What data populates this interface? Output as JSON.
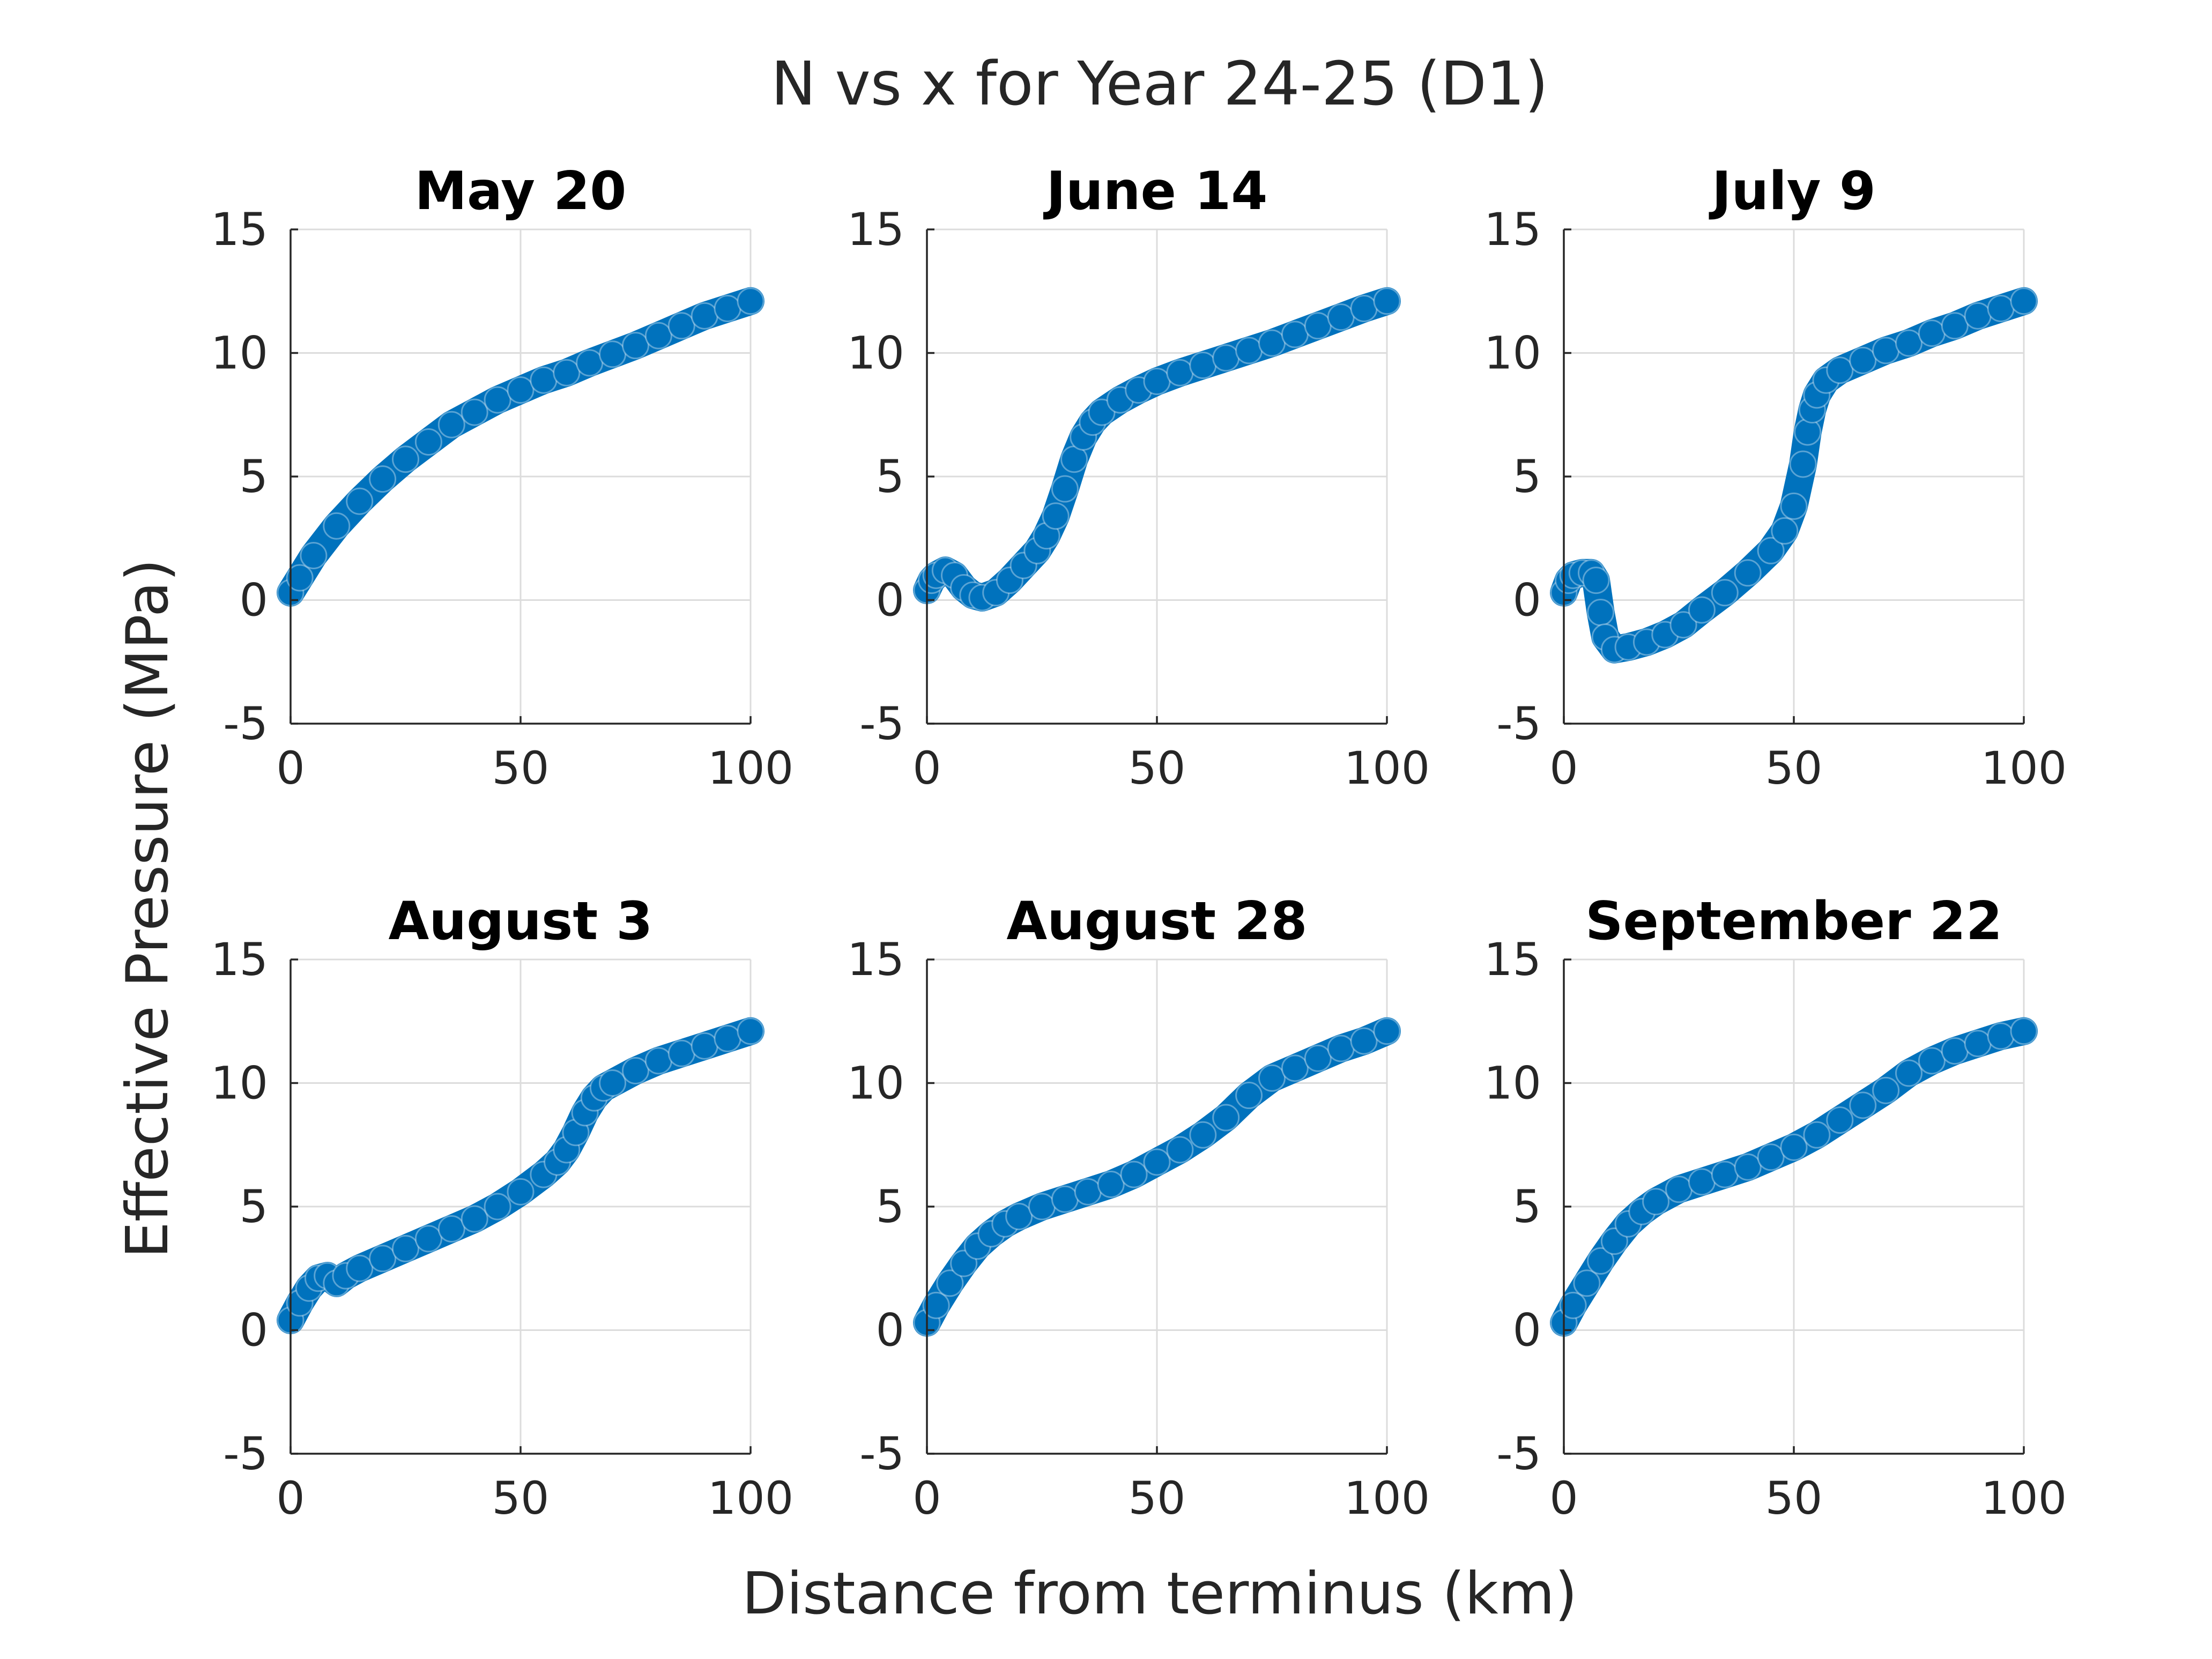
{
  "figure": {
    "title": "N vs x for Year 24-25 (D1)",
    "xlabel": "Distance from terminus (km)",
    "ylabel": "Effective Pressure (MPa)",
    "series_color": "#0072BD"
  },
  "chart_data": [
    {
      "type": "scatter",
      "title": "May 20",
      "xlim": [
        0,
        100
      ],
      "ylim": [
        -5,
        15
      ],
      "xticks": [
        0,
        50,
        100
      ],
      "yticks": [
        -5,
        0,
        5,
        10,
        15
      ],
      "grid": true,
      "x": [
        0,
        2,
        5,
        10,
        15,
        20,
        25,
        30,
        35,
        40,
        45,
        50,
        55,
        60,
        65,
        70,
        75,
        80,
        85,
        90,
        95,
        100
      ],
      "y": [
        0.3,
        0.9,
        1.8,
        3.0,
        4.0,
        4.9,
        5.7,
        6.4,
        7.1,
        7.6,
        8.1,
        8.5,
        8.9,
        9.2,
        9.6,
        9.95,
        10.3,
        10.7,
        11.1,
        11.5,
        11.8,
        12.1
      ]
    },
    {
      "type": "scatter",
      "title": "June 14",
      "xlim": [
        0,
        100
      ],
      "ylim": [
        -5,
        15
      ],
      "xticks": [
        0,
        50,
        100
      ],
      "yticks": [
        -5,
        0,
        5,
        10,
        15
      ],
      "grid": true,
      "x": [
        0,
        1,
        2,
        4,
        6,
        8,
        10,
        12,
        15,
        18,
        21,
        24,
        26,
        28,
        30,
        32,
        34,
        36,
        38,
        42,
        46,
        50,
        55,
        60,
        65,
        70,
        75,
        80,
        85,
        90,
        95,
        100
      ],
      "y": [
        0.4,
        0.8,
        1.0,
        1.2,
        1.0,
        0.5,
        0.2,
        0.1,
        0.3,
        0.8,
        1.4,
        2.0,
        2.6,
        3.4,
        4.5,
        5.7,
        6.6,
        7.2,
        7.6,
        8.1,
        8.5,
        8.85,
        9.2,
        9.5,
        9.8,
        10.1,
        10.4,
        10.75,
        11.1,
        11.45,
        11.8,
        12.1
      ]
    },
    {
      "type": "scatter",
      "title": "July 9",
      "xlim": [
        0,
        100
      ],
      "ylim": [
        -5,
        15
      ],
      "xticks": [
        0,
        50,
        100
      ],
      "yticks": [
        -5,
        0,
        5,
        10,
        15
      ],
      "grid": true,
      "x": [
        0,
        1,
        2,
        4,
        6,
        7,
        8,
        9,
        11,
        14,
        18,
        22,
        26,
        30,
        35,
        40,
        45,
        48,
        50,
        52,
        53,
        54,
        55,
        57,
        60,
        65,
        70,
        75,
        80,
        85,
        90,
        95,
        100
      ],
      "y": [
        0.3,
        0.8,
        1.0,
        1.1,
        1.1,
        0.8,
        -0.5,
        -1.5,
        -2.0,
        -1.9,
        -1.7,
        -1.4,
        -1.0,
        -0.4,
        0.3,
        1.1,
        2.0,
        2.8,
        3.8,
        5.5,
        6.8,
        7.7,
        8.3,
        8.9,
        9.3,
        9.7,
        10.1,
        10.4,
        10.8,
        11.1,
        11.5,
        11.8,
        12.1
      ]
    },
    {
      "type": "scatter",
      "title": "August 3",
      "xlim": [
        0,
        100
      ],
      "ylim": [
        -5,
        15
      ],
      "xticks": [
        0,
        50,
        100
      ],
      "yticks": [
        -5,
        0,
        5,
        10,
        15
      ],
      "grid": true,
      "x": [
        0,
        2,
        4,
        6,
        8,
        10,
        12,
        15,
        20,
        25,
        30,
        35,
        40,
        45,
        50,
        55,
        58,
        60,
        62,
        64,
        66,
        68,
        70,
        75,
        80,
        85,
        90,
        95,
        100
      ],
      "y": [
        0.4,
        1.1,
        1.7,
        2.1,
        2.2,
        1.9,
        2.2,
        2.5,
        2.9,
        3.3,
        3.7,
        4.1,
        4.5,
        5.0,
        5.6,
        6.3,
        6.8,
        7.3,
        8.0,
        8.8,
        9.4,
        9.8,
        10.0,
        10.5,
        10.9,
        11.2,
        11.5,
        11.8,
        12.1
      ]
    },
    {
      "type": "scatter",
      "title": "August 28",
      "xlim": [
        0,
        100
      ],
      "ylim": [
        -5,
        15
      ],
      "xticks": [
        0,
        50,
        100
      ],
      "yticks": [
        -5,
        0,
        5,
        10,
        15
      ],
      "grid": true,
      "x": [
        0,
        2,
        5,
        8,
        11,
        14,
        17,
        20,
        25,
        30,
        35,
        40,
        45,
        50,
        55,
        60,
        65,
        70,
        75,
        80,
        85,
        90,
        95,
        100
      ],
      "y": [
        0.3,
        1.0,
        1.9,
        2.7,
        3.4,
        3.9,
        4.3,
        4.6,
        5.0,
        5.3,
        5.6,
        5.9,
        6.3,
        6.8,
        7.3,
        7.9,
        8.6,
        9.5,
        10.2,
        10.6,
        11.0,
        11.4,
        11.7,
        12.1
      ]
    },
    {
      "type": "scatter",
      "title": "September 22",
      "xlim": [
        0,
        100
      ],
      "ylim": [
        -5,
        15
      ],
      "xticks": [
        0,
        50,
        100
      ],
      "yticks": [
        -5,
        0,
        5,
        10,
        15
      ],
      "grid": true,
      "x": [
        0,
        2,
        5,
        8,
        11,
        14,
        17,
        20,
        25,
        30,
        35,
        40,
        45,
        50,
        55,
        60,
        65,
        70,
        75,
        80,
        85,
        90,
        95,
        100
      ],
      "y": [
        0.3,
        1.0,
        1.9,
        2.8,
        3.6,
        4.3,
        4.8,
        5.2,
        5.7,
        6.0,
        6.3,
        6.6,
        7.0,
        7.4,
        7.9,
        8.5,
        9.1,
        9.7,
        10.4,
        10.9,
        11.3,
        11.6,
        11.9,
        12.1
      ]
    }
  ]
}
